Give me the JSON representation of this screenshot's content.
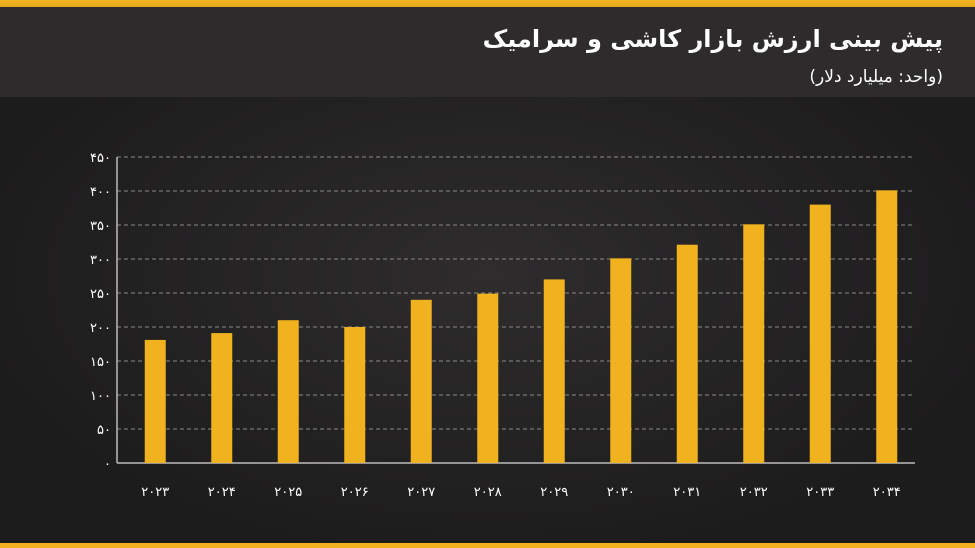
{
  "header": {
    "title": "پیش بینی ارزش بازار کاشی و سرامیک",
    "subtitle": "(واحد: میلیارد دلار)"
  },
  "chart_data": {
    "type": "bar",
    "title": "پیش بینی ارزش بازار کاشی و سرامیک",
    "subtitle": "(واحد: میلیارد دلار)",
    "xlabel": "",
    "ylabel": "",
    "categories": [
      "۲۰۲۳",
      "۲۰۲۴",
      "۲۰۲۵",
      "۲۰۲۶",
      "۲۰۲۷",
      "۲۰۲۸",
      "۲۰۲۹",
      "۲۰۳۰",
      "۲۰۳۱",
      "۲۰۳۲",
      "۲۰۳۳",
      "۲۰۳۴"
    ],
    "values": [
      181,
      191,
      210,
      200,
      240,
      249,
      270,
      301,
      321,
      351,
      380,
      401
    ],
    "ylim": [
      0,
      450
    ],
    "yticks": [
      0,
      50,
      100,
      150,
      200,
      250,
      300,
      350,
      400,
      450
    ],
    "ytick_labels": [
      "۰",
      "۵۰",
      "۱۰۰",
      "۱۵۰",
      "۲۰۰",
      "۲۵۰",
      "۳۰۰",
      "۳۵۰",
      "۴۰۰",
      "۴۵۰"
    ],
    "grid": true,
    "bar_color": "#f0b21e"
  }
}
